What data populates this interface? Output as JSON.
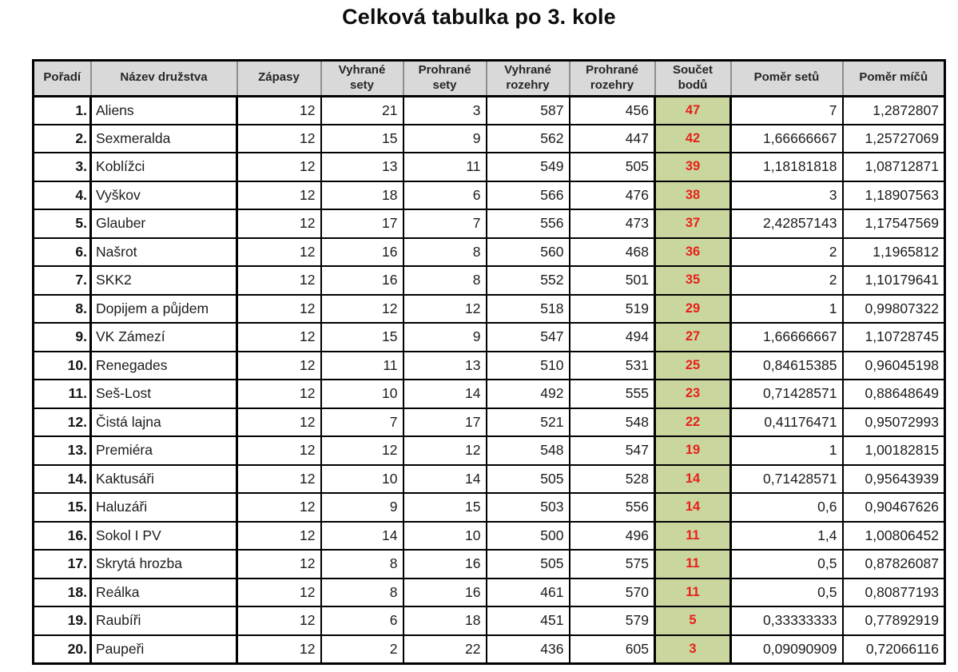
{
  "title": "Celková tabulka po 3. kole",
  "colors": {
    "header_bg": "#d9d9d9",
    "points_bg": "#c9d79f",
    "points_text": "#e8201a"
  },
  "table": {
    "columns": [
      {
        "key": "rank",
        "label": "Pořadí"
      },
      {
        "key": "team",
        "label": "Název družstva"
      },
      {
        "key": "matches",
        "label": "Zápasy"
      },
      {
        "key": "sets_won",
        "label": "Vyhrané sety"
      },
      {
        "key": "sets_lost",
        "label": "Prohrané sety"
      },
      {
        "key": "rallies_won",
        "label": "Vyhrané rozehry"
      },
      {
        "key": "rallies_lost",
        "label": "Prohrané rozehry"
      },
      {
        "key": "points",
        "label": "Součet bodů"
      },
      {
        "key": "set_ratio",
        "label": "Poměr setů"
      },
      {
        "key": "ball_ratio",
        "label": "Poměr míčů"
      }
    ],
    "rows": [
      {
        "rank": "1.",
        "team": "Aliens",
        "matches": "12",
        "sets_won": "21",
        "sets_lost": "3",
        "rallies_won": "587",
        "rallies_lost": "456",
        "points": "47",
        "set_ratio": "7",
        "ball_ratio": "1,2872807"
      },
      {
        "rank": "2.",
        "team": "Sexmeralda",
        "matches": "12",
        "sets_won": "15",
        "sets_lost": "9",
        "rallies_won": "562",
        "rallies_lost": "447",
        "points": "42",
        "set_ratio": "1,66666667",
        "ball_ratio": "1,25727069"
      },
      {
        "rank": "3.",
        "team": "Koblížci",
        "matches": "12",
        "sets_won": "13",
        "sets_lost": "11",
        "rallies_won": "549",
        "rallies_lost": "505",
        "points": "39",
        "set_ratio": "1,18181818",
        "ball_ratio": "1,08712871"
      },
      {
        "rank": "4.",
        "team": "Vyškov",
        "matches": "12",
        "sets_won": "18",
        "sets_lost": "6",
        "rallies_won": "566",
        "rallies_lost": "476",
        "points": "38",
        "set_ratio": "3",
        "ball_ratio": "1,18907563"
      },
      {
        "rank": "5.",
        "team": "Glauber",
        "matches": "12",
        "sets_won": "17",
        "sets_lost": "7",
        "rallies_won": "556",
        "rallies_lost": "473",
        "points": "37",
        "set_ratio": "2,42857143",
        "ball_ratio": "1,17547569"
      },
      {
        "rank": "6.",
        "team": "Našrot",
        "matches": "12",
        "sets_won": "16",
        "sets_lost": "8",
        "rallies_won": "560",
        "rallies_lost": "468",
        "points": "36",
        "set_ratio": "2",
        "ball_ratio": "1,1965812"
      },
      {
        "rank": "7.",
        "team": "SKK2",
        "matches": "12",
        "sets_won": "16",
        "sets_lost": "8",
        "rallies_won": "552",
        "rallies_lost": "501",
        "points": "35",
        "set_ratio": "2",
        "ball_ratio": "1,10179641"
      },
      {
        "rank": "8.",
        "team": "Dopijem a půjdem",
        "matches": "12",
        "sets_won": "12",
        "sets_lost": "12",
        "rallies_won": "518",
        "rallies_lost": "519",
        "points": "29",
        "set_ratio": "1",
        "ball_ratio": "0,99807322"
      },
      {
        "rank": "9.",
        "team": "VK Zámezí",
        "matches": "12",
        "sets_won": "15",
        "sets_lost": "9",
        "rallies_won": "547",
        "rallies_lost": "494",
        "points": "27",
        "set_ratio": "1,66666667",
        "ball_ratio": "1,10728745"
      },
      {
        "rank": "10.",
        "team": "Renegades",
        "matches": "12",
        "sets_won": "11",
        "sets_lost": "13",
        "rallies_won": "510",
        "rallies_lost": "531",
        "points": "25",
        "set_ratio": "0,84615385",
        "ball_ratio": "0,96045198"
      },
      {
        "rank": "11.",
        "team": "Seš-Lost",
        "matches": "12",
        "sets_won": "10",
        "sets_lost": "14",
        "rallies_won": "492",
        "rallies_lost": "555",
        "points": "23",
        "set_ratio": "0,71428571",
        "ball_ratio": "0,88648649"
      },
      {
        "rank": "12.",
        "team": "Čistá lajna",
        "matches": "12",
        "sets_won": "7",
        "sets_lost": "17",
        "rallies_won": "521",
        "rallies_lost": "548",
        "points": "22",
        "set_ratio": "0,41176471",
        "ball_ratio": "0,95072993"
      },
      {
        "rank": "13.",
        "team": "Premiéra",
        "matches": "12",
        "sets_won": "12",
        "sets_lost": "12",
        "rallies_won": "548",
        "rallies_lost": "547",
        "points": "19",
        "set_ratio": "1",
        "ball_ratio": "1,00182815"
      },
      {
        "rank": "14.",
        "team": "Kaktusáři",
        "matches": "12",
        "sets_won": "10",
        "sets_lost": "14",
        "rallies_won": "505",
        "rallies_lost": "528",
        "points": "14",
        "set_ratio": "0,71428571",
        "ball_ratio": "0,95643939"
      },
      {
        "rank": "15.",
        "team": "Haluzáři",
        "matches": "12",
        "sets_won": "9",
        "sets_lost": "15",
        "rallies_won": "503",
        "rallies_lost": "556",
        "points": "14",
        "set_ratio": "0,6",
        "ball_ratio": "0,90467626"
      },
      {
        "rank": "16.",
        "team": "Sokol I PV",
        "matches": "12",
        "sets_won": "14",
        "sets_lost": "10",
        "rallies_won": "500",
        "rallies_lost": "496",
        "points": "11",
        "set_ratio": "1,4",
        "ball_ratio": "1,00806452"
      },
      {
        "rank": "17.",
        "team": "Skrytá hrozba",
        "matches": "12",
        "sets_won": "8",
        "sets_lost": "16",
        "rallies_won": "505",
        "rallies_lost": "575",
        "points": "11",
        "set_ratio": "0,5",
        "ball_ratio": "0,87826087"
      },
      {
        "rank": "18.",
        "team": "Reálka",
        "matches": "12",
        "sets_won": "8",
        "sets_lost": "16",
        "rallies_won": "461",
        "rallies_lost": "570",
        "points": "11",
        "set_ratio": "0,5",
        "ball_ratio": "0,80877193"
      },
      {
        "rank": "19.",
        "team": "Raubíři",
        "matches": "12",
        "sets_won": "6",
        "sets_lost": "18",
        "rallies_won": "451",
        "rallies_lost": "579",
        "points": "5",
        "set_ratio": "0,33333333",
        "ball_ratio": "0,77892919"
      },
      {
        "rank": "20.",
        "team": "Paupeři",
        "matches": "12",
        "sets_won": "2",
        "sets_lost": "22",
        "rallies_won": "436",
        "rallies_lost": "605",
        "points": "3",
        "set_ratio": "0,09090909",
        "ball_ratio": "0,72066116"
      }
    ]
  }
}
